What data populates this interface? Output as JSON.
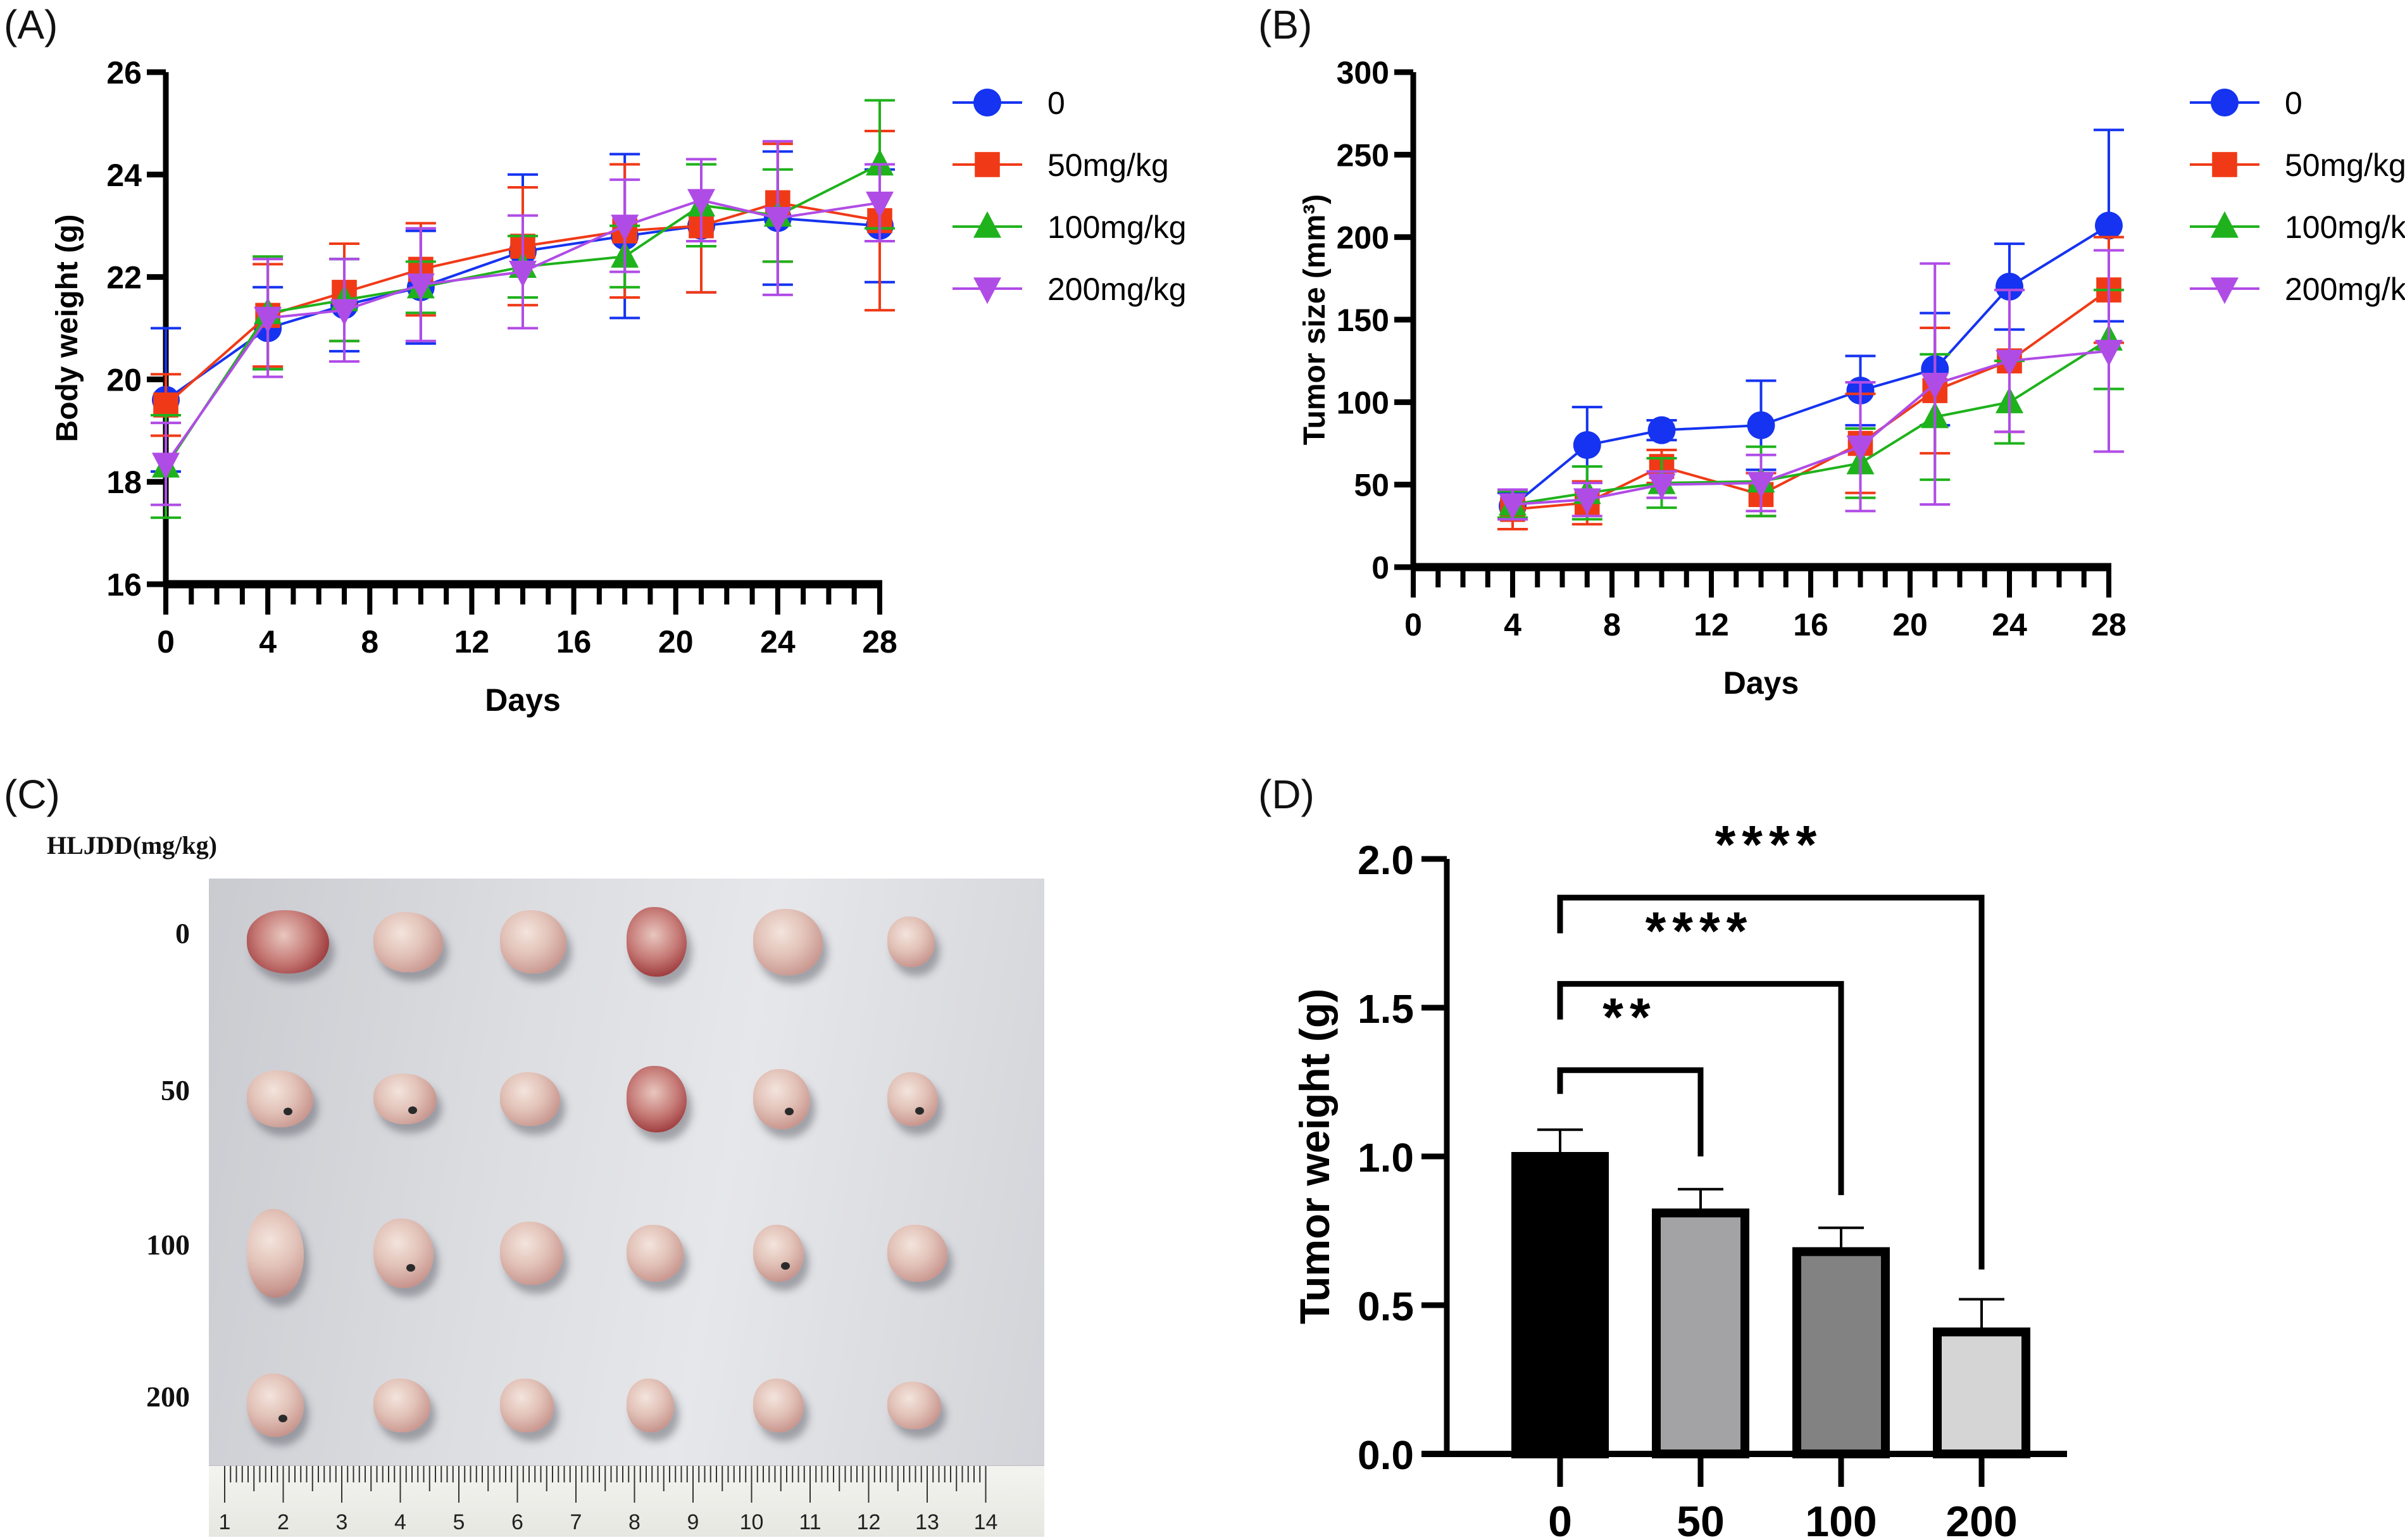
{
  "panels": {
    "a_label": "(A)",
    "b_label": "(B)",
    "c_label": "(C)",
    "d_label": "(D)"
  },
  "photo": {
    "header": "HLJDD(mg/kg)",
    "row_labels": [
      "0",
      "50",
      "100",
      "200"
    ],
    "columns_per_row": 6,
    "ruler_labels": [
      "1",
      "2",
      "3",
      "4",
      "5",
      "6",
      "7",
      "8",
      "9",
      "10",
      "11",
      "12",
      "13",
      "14"
    ]
  },
  "chart_data": [
    {
      "id": "A",
      "type": "line",
      "title": "",
      "xlabel": "Days",
      "ylabel": "Body weight (g)",
      "xlim": [
        0,
        28
      ],
      "ylim": [
        16,
        26
      ],
      "xticks": [
        0,
        4,
        8,
        12,
        16,
        20,
        24,
        28
      ],
      "yticks": [
        16,
        18,
        20,
        22,
        24,
        26
      ],
      "x_minor_step": 1,
      "grid": false,
      "legend_position": "right",
      "x": [
        0,
        4,
        7,
        10,
        14,
        18,
        21,
        24,
        28
      ],
      "series": [
        {
          "name": "0",
          "color": "#1533f0",
          "marker": "circle",
          "values": [
            19.6,
            21.0,
            21.45,
            21.8,
            22.5,
            22.8,
            23.0,
            23.15,
            23.0
          ],
          "errors": [
            1.4,
            0.8,
            0.9,
            1.1,
            1.5,
            1.6,
            1.3,
            1.3,
            1.1
          ]
        },
        {
          "name": "50mg/kg",
          "color": "#f03a17",
          "marker": "square",
          "values": [
            19.5,
            21.25,
            21.7,
            22.15,
            22.6,
            22.9,
            23.0,
            23.45,
            23.1
          ],
          "errors": [
            0.6,
            1.0,
            0.95,
            0.9,
            1.15,
            1.3,
            1.3,
            1.15,
            1.75
          ]
        },
        {
          "name": "100mg/kg",
          "color": "#1fb21c",
          "marker": "triangle-up",
          "values": [
            18.3,
            21.3,
            21.55,
            21.8,
            22.2,
            22.4,
            23.4,
            23.2,
            24.2
          ],
          "errors": [
            1.0,
            1.1,
            0.8,
            0.5,
            0.6,
            0.6,
            0.8,
            0.9,
            1.25
          ]
        },
        {
          "name": "200mg/kg",
          "color": "#b04ce6",
          "marker": "triangle-down",
          "values": [
            18.35,
            21.2,
            21.35,
            21.85,
            22.1,
            23.0,
            23.5,
            23.15,
            23.45
          ],
          "errors": [
            0.8,
            1.15,
            1.0,
            1.1,
            1.1,
            0.9,
            0.8,
            1.5,
            0.75
          ]
        }
      ]
    },
    {
      "id": "B",
      "type": "line",
      "title": "",
      "xlabel": "Days",
      "ylabel": "Tumor size (mm³)",
      "xlim": [
        0,
        28
      ],
      "ylim": [
        0,
        300
      ],
      "xticks": [
        0,
        4,
        8,
        12,
        16,
        20,
        24,
        28
      ],
      "yticks": [
        0,
        50,
        100,
        150,
        200,
        250,
        300
      ],
      "x_minor_step": 1,
      "grid": false,
      "legend_position": "right",
      "x": [
        4,
        7,
        10,
        14,
        18,
        21,
        24,
        28
      ],
      "series": [
        {
          "name": "0",
          "color": "#1533f0",
          "marker": "circle",
          "values": [
            37,
            74,
            83,
            86,
            107,
            120,
            170,
            207
          ],
          "errors": [
            8,
            23,
            6,
            27,
            21,
            34,
            26,
            58
          ]
        },
        {
          "name": "50mg/kg",
          "color": "#f03a17",
          "marker": "square",
          "values": [
            35,
            39,
            61,
            44,
            75,
            107,
            125,
            168
          ],
          "errors": [
            12,
            13,
            10,
            13,
            30,
            38,
            43,
            32
          ]
        },
        {
          "name": "100mg/kg",
          "color": "#1fb21c",
          "marker": "triangle-up",
          "values": [
            38,
            45,
            51,
            52,
            63,
            91,
            100,
            138
          ],
          "errors": [
            8,
            16,
            15,
            21,
            21,
            38,
            25,
            30
          ]
        },
        {
          "name": "200mg/kg",
          "color": "#b04ce6",
          "marker": "triangle-down",
          "values": [
            38,
            41,
            50,
            51,
            73,
            111,
            125,
            131
          ],
          "errors": [
            9,
            10,
            8,
            17,
            39,
            73,
            43,
            61
          ]
        }
      ]
    },
    {
      "id": "D",
      "type": "bar",
      "title": "",
      "xlabel": "",
      "ylabel": "Tumor weight (g)",
      "ylim": [
        0,
        2.0
      ],
      "yticks": [
        "0.0",
        "0.5",
        "1.0",
        "1.5",
        "2.0"
      ],
      "categories": [
        "0",
        "50",
        "100",
        "200"
      ],
      "values": [
        1.0,
        0.81,
        0.68,
        0.41
      ],
      "errors": [
        0.09,
        0.08,
        0.08,
        0.11
      ],
      "bar_colors": [
        "#000000",
        "#a3a3a6",
        "#828282",
        "#d5d5d5"
      ],
      "significance": [
        {
          "from": "0",
          "to": "50",
          "label": "**"
        },
        {
          "from": "0",
          "to": "100",
          "label": "****"
        },
        {
          "from": "0",
          "to": "200",
          "label": "****"
        }
      ]
    }
  ]
}
